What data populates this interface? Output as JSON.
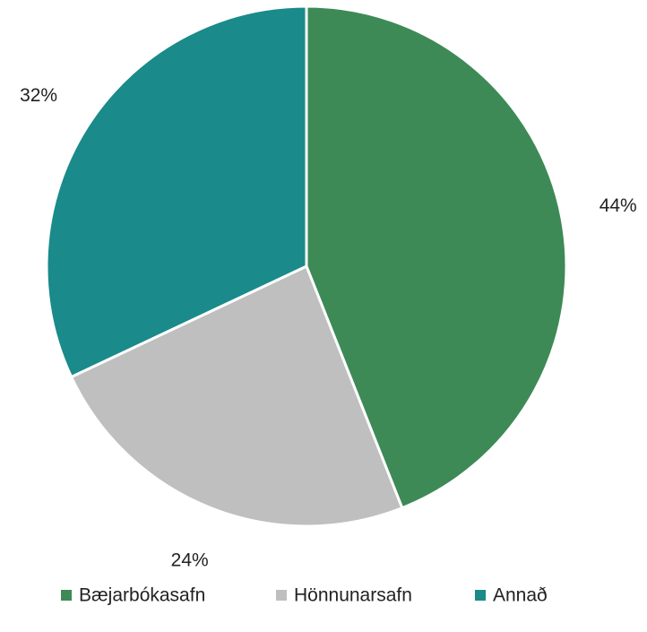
{
  "chart_data": {
    "type": "pie",
    "categories": [
      "Bæjarbókasafn",
      "Hönnunarsafn",
      "Annað"
    ],
    "values": [
      44,
      24,
      32
    ],
    "value_labels": [
      "44%",
      "24%",
      "32%"
    ],
    "colors": [
      "#3d8a56",
      "#bfbfbf",
      "#1a8a8a"
    ],
    "legend": "bottom"
  }
}
